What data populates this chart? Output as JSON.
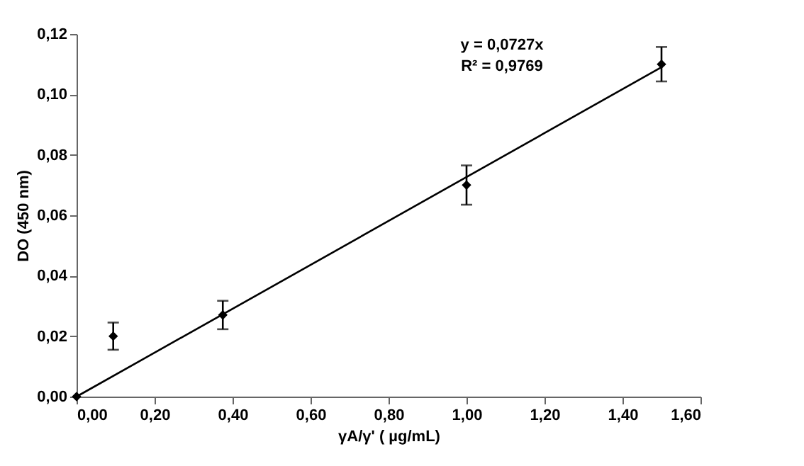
{
  "chart_data": {
    "type": "scatter",
    "xlabel": "γA/γ' ( µg/mL)",
    "ylabel": "DO (450 nm)",
    "annotations": [
      "y = 0,0727x",
      "R² = 0,9769"
    ],
    "series": [
      {
        "color": "#000000",
        "marker": "diamond",
        "x": [
          0,
          0.094,
          0.375,
          1.0,
          1.5
        ],
        "values": [
          0,
          0.02,
          0.027,
          0.07,
          0.11
        ],
        "errors": [
          null,
          0.0045,
          0.0047,
          0.0065,
          0.0057
        ]
      },
      {
        "type": "line",
        "color": "#000000",
        "line_style": "solid",
        "x": [
          0,
          1.5
        ],
        "values": [
          0,
          0.109
        ]
      }
    ],
    "xlim": [
      0,
      1.6
    ],
    "ylim": [
      0,
      0.12
    ],
    "xticks": [
      {
        "value": 0,
        "label": "0,00"
      },
      {
        "value": 0.2,
        "label": "0,20"
      },
      {
        "value": 0.4,
        "label": "0,40"
      },
      {
        "value": 0.6,
        "label": "0,60"
      },
      {
        "value": 0.8,
        "label": "0,80"
      },
      {
        "value": 1.0,
        "label": "1,00"
      },
      {
        "value": 1.2,
        "label": "1,20"
      },
      {
        "value": 1.4,
        "label": "1,40"
      },
      {
        "value": 1.6,
        "label": "1,60"
      }
    ],
    "yticks": [
      {
        "value": 0,
        "label": "0,00"
      },
      {
        "value": 0.02,
        "label": "0,02"
      },
      {
        "value": 0.04,
        "label": "0,04"
      },
      {
        "value": 0.06,
        "label": "0,06"
      },
      {
        "value": 0.08,
        "label": "0,08"
      },
      {
        "value": 0.1,
        "label": "0,10"
      },
      {
        "value": 0.12,
        "label": "0,12"
      }
    ],
    "grid": false
  }
}
